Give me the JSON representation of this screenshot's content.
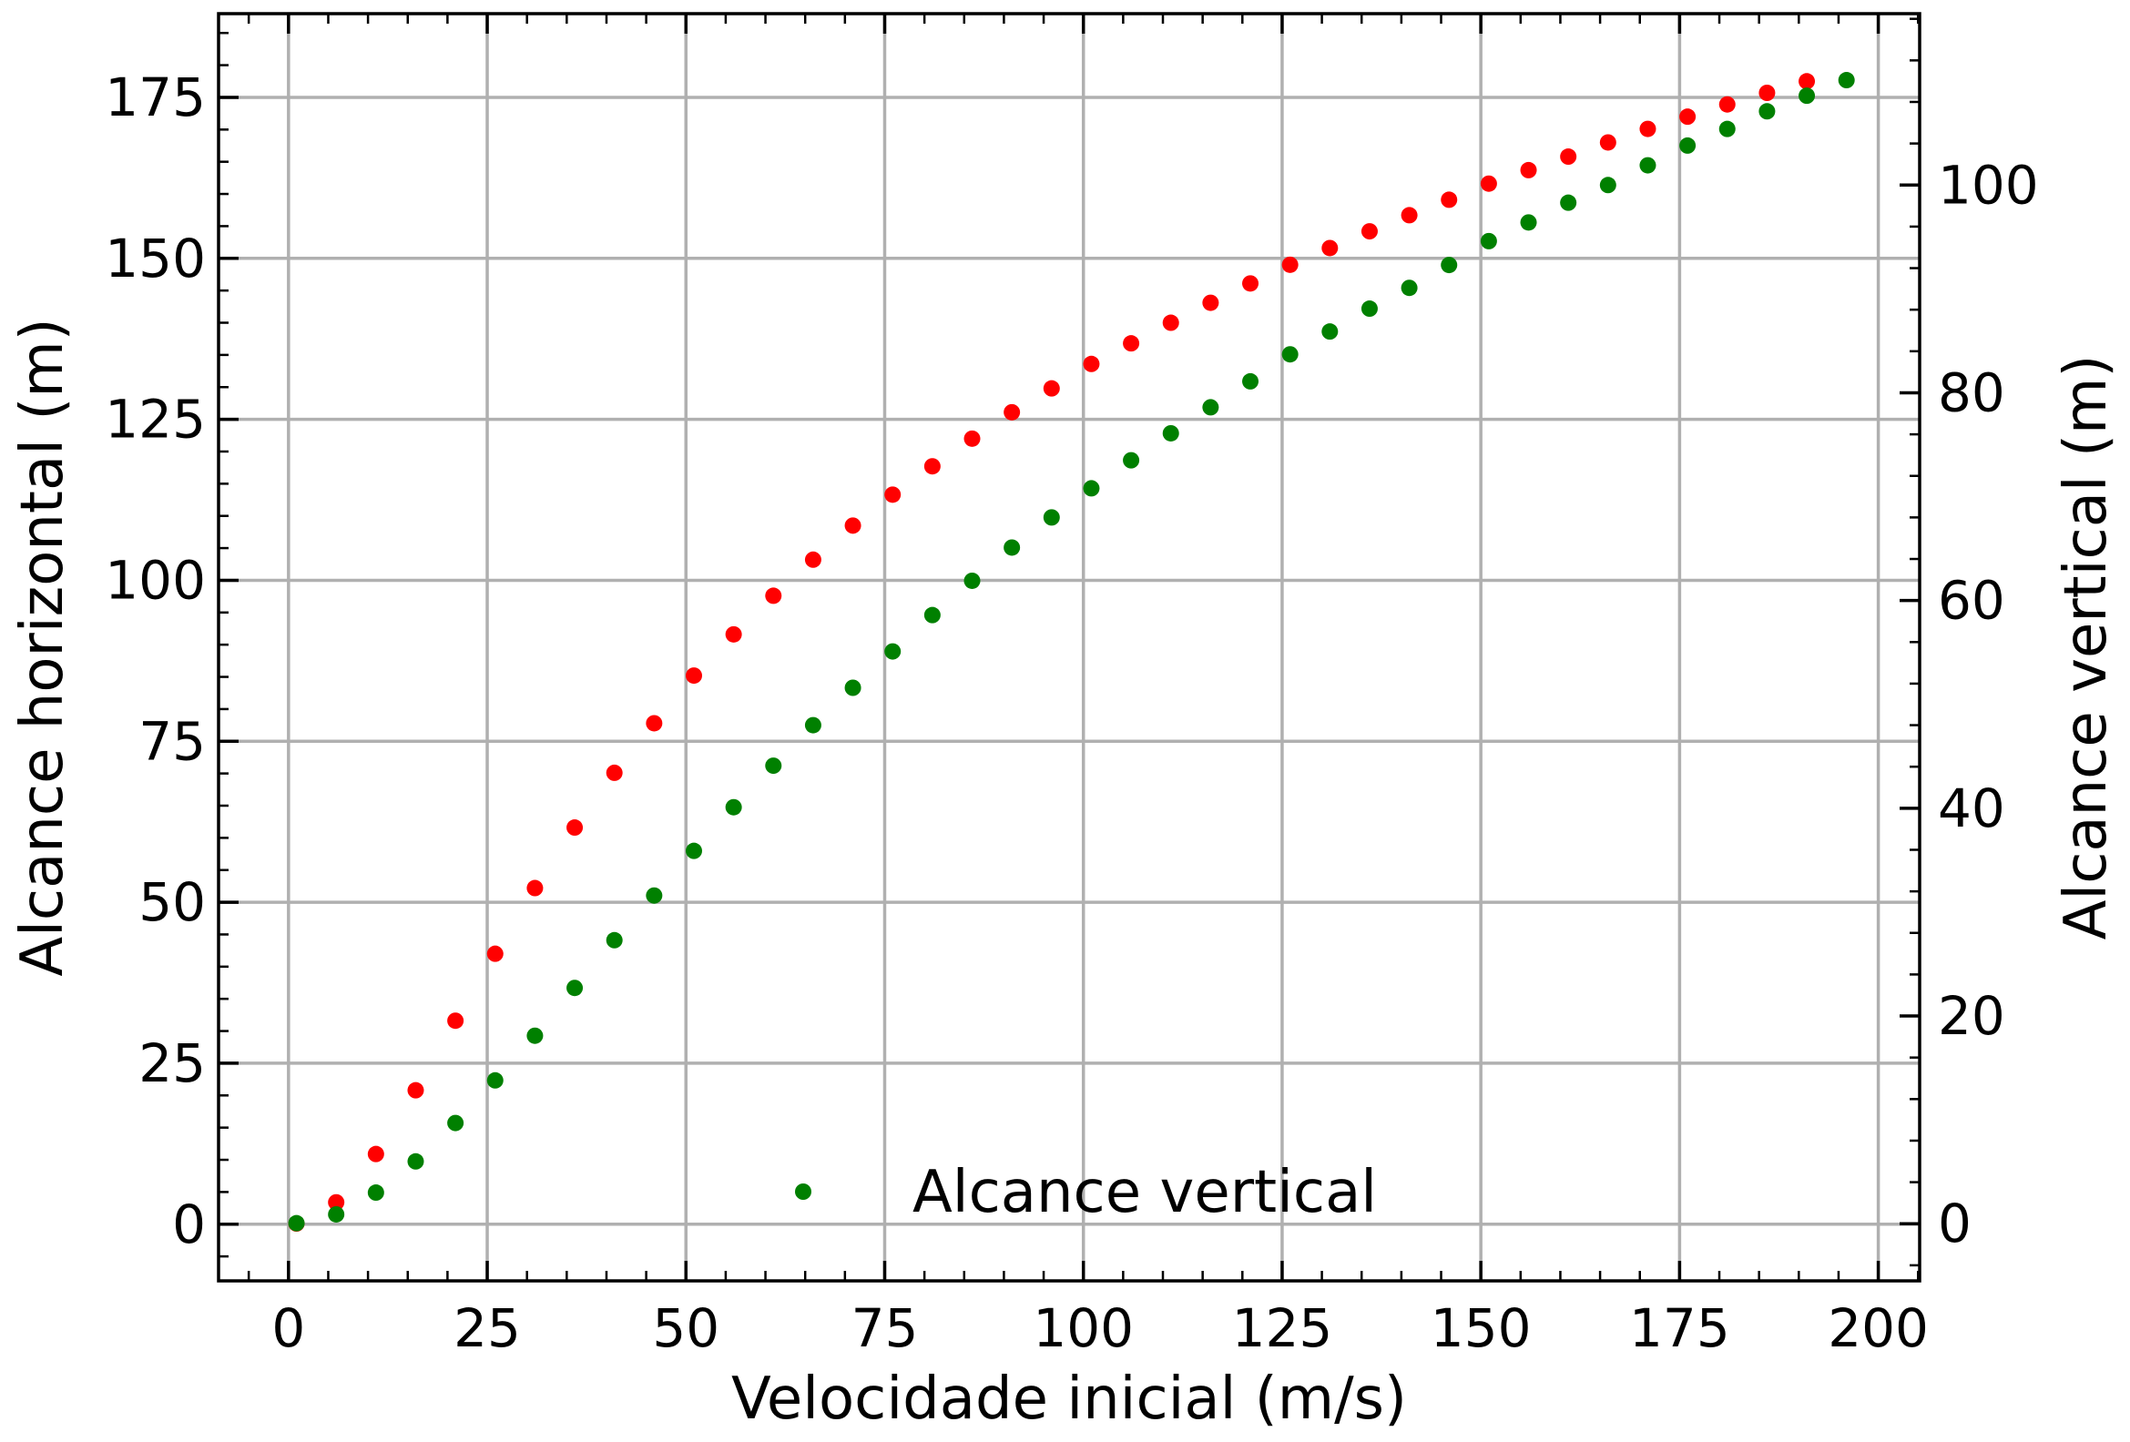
{
  "chart_data": {
    "type": "scatter",
    "xlabel": "Velocidade inicial (m/s)",
    "ylabel_left": "Alcance horizontal (m)",
    "ylabel_right": "Alcance vertical (m)",
    "xlim": [
      -8.8,
      205.2
    ],
    "ylim_left": [
      -8.8,
      188
    ],
    "ylim_right": [
      -5.5,
      116.5
    ],
    "xticks": [
      0,
      25,
      50,
      75,
      100,
      125,
      150,
      175,
      200
    ],
    "xticks_minor_step": 5,
    "yticks_left": [
      0,
      25,
      50,
      75,
      100,
      125,
      150,
      175
    ],
    "yticks_left_minor_step": 5,
    "yticks_right": [
      0,
      20,
      40,
      60,
      80,
      100
    ],
    "yticks_right_minor_step": 4,
    "grid": true,
    "legend": {
      "entries": [
        "Alcance vertical"
      ],
      "position": "lower-center"
    },
    "series": [
      {
        "axis": "left",
        "color": "#ff0000",
        "x": [
          1,
          6,
          11,
          16,
          21,
          26,
          31,
          36,
          41,
          46,
          51,
          56,
          61,
          66,
          71,
          76,
          81,
          86,
          91,
          96,
          101,
          106,
          111,
          116,
          121,
          126,
          131,
          136,
          141,
          146,
          151,
          156,
          161,
          166,
          171,
          176,
          181,
          186,
          191
        ],
        "y": [
          0.1,
          3.4,
          10.9,
          20.8,
          31.6,
          42.0,
          52.2,
          61.6,
          70.1,
          77.8,
          85.2,
          91.6,
          97.6,
          103.2,
          108.5,
          113.3,
          117.7,
          122.0,
          126.1,
          129.8,
          133.6,
          136.8,
          140.0,
          143.1,
          146.1,
          149.0,
          151.6,
          154.2,
          156.7,
          159.1,
          161.6,
          163.7,
          165.8,
          168.0,
          170.1,
          172.0,
          173.9,
          175.7,
          177.5
        ]
      },
      {
        "axis": "right",
        "color": "#008000",
        "x": [
          1,
          6,
          11,
          16,
          21,
          26,
          31,
          36,
          41,
          46,
          51,
          56,
          61,
          66,
          71,
          76,
          81,
          86,
          91,
          96,
          101,
          106,
          111,
          116,
          121,
          126,
          131,
          136,
          141,
          146,
          151,
          156,
          161,
          166,
          171,
          176,
          181,
          186,
          191,
          196
        ],
        "y": [
          0.05,
          0.9,
          3.0,
          6.0,
          9.7,
          13.8,
          18.1,
          22.7,
          27.3,
          31.6,
          35.9,
          40.1,
          44.1,
          48.0,
          51.6,
          55.1,
          58.6,
          61.9,
          65.1,
          68.0,
          70.8,
          73.5,
          76.1,
          78.6,
          81.1,
          83.7,
          85.9,
          88.1,
          90.1,
          92.3,
          94.6,
          96.4,
          98.3,
          100.0,
          101.9,
          103.8,
          105.4,
          107.1,
          108.6,
          110.1
        ]
      }
    ]
  }
}
